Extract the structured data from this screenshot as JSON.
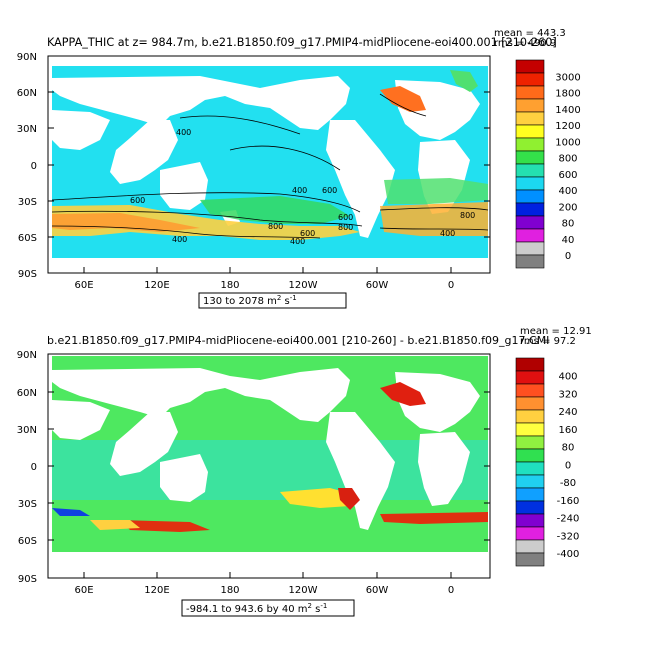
{
  "top_panel": {
    "title": "KAPPA_THIC at z= 984.7m, b.e21.B1850.f09_g17.PMIP4-midPliocene-eoi400.001 [210-260]",
    "mean_text": "mean = 443.3",
    "rms_text": "rms = 490.9",
    "range_text": "130 to 2078 m",
    "range_unit_sup": "2",
    "range_unit_tail": " s",
    "range_unit_exp": "-1",
    "lat_labels": [
      "90N",
      "60N",
      "30N",
      "0",
      "30S",
      "60S",
      "90S"
    ],
    "lon_labels": [
      "60E",
      "120E",
      "180",
      "120W",
      "60W",
      "0"
    ],
    "colorbar": {
      "labels": [
        "3000",
        "1800",
        "1400",
        "1200",
        "1000",
        "800",
        "600",
        "400",
        "200",
        "80",
        "40",
        "0"
      ],
      "colors": [
        "#c40000",
        "#ee2200",
        "#ff6a1a",
        "#ffa030",
        "#ffd040",
        "#ffff20",
        "#90f030",
        "#34e04a",
        "#24e0b0",
        "#1cd8f0",
        "#0090ff",
        "#0020e0",
        "#8000d0",
        "#e020e0",
        "#cccccc",
        "#808080"
      ]
    },
    "contour_labels": [
      "400",
      "400",
      "600",
      "600",
      "600",
      "800",
      "800",
      "400",
      "400",
      "600",
      "800",
      "400"
    ]
  },
  "bottom_panel": {
    "title": "b.e21.B1850.f09_g17.PMIP4-midPliocene-eoi400.001 [210-260] - b.e21.B1850.f09_g17.CMI",
    "mean_text": "mean = 12.91",
    "rms_text": "rms = 97.2",
    "range_text": "-984.1 to 943.6 by 40 m",
    "range_unit_sup": "2",
    "range_unit_tail": " s",
    "range_unit_exp": "-1",
    "lat_labels": [
      "90N",
      "60N",
      "30N",
      "0",
      "30S",
      "60S",
      "90S"
    ],
    "lon_labels": [
      "60E",
      "120E",
      "180",
      "120W",
      "60W",
      "0"
    ],
    "colorbar": {
      "labels": [
        "400",
        "320",
        "240",
        "160",
        "80",
        "0",
        "-80",
        "-160",
        "-240",
        "-320",
        "-400"
      ],
      "colors": [
        "#b00000",
        "#e01010",
        "#ff5020",
        "#ff9030",
        "#ffd040",
        "#ffff40",
        "#90f040",
        "#30e050",
        "#20e0c0",
        "#20d0f0",
        "#10a0ff",
        "#0030e0",
        "#8000d0",
        "#e020e0",
        "#cccccc",
        "#808080"
      ]
    }
  }
}
